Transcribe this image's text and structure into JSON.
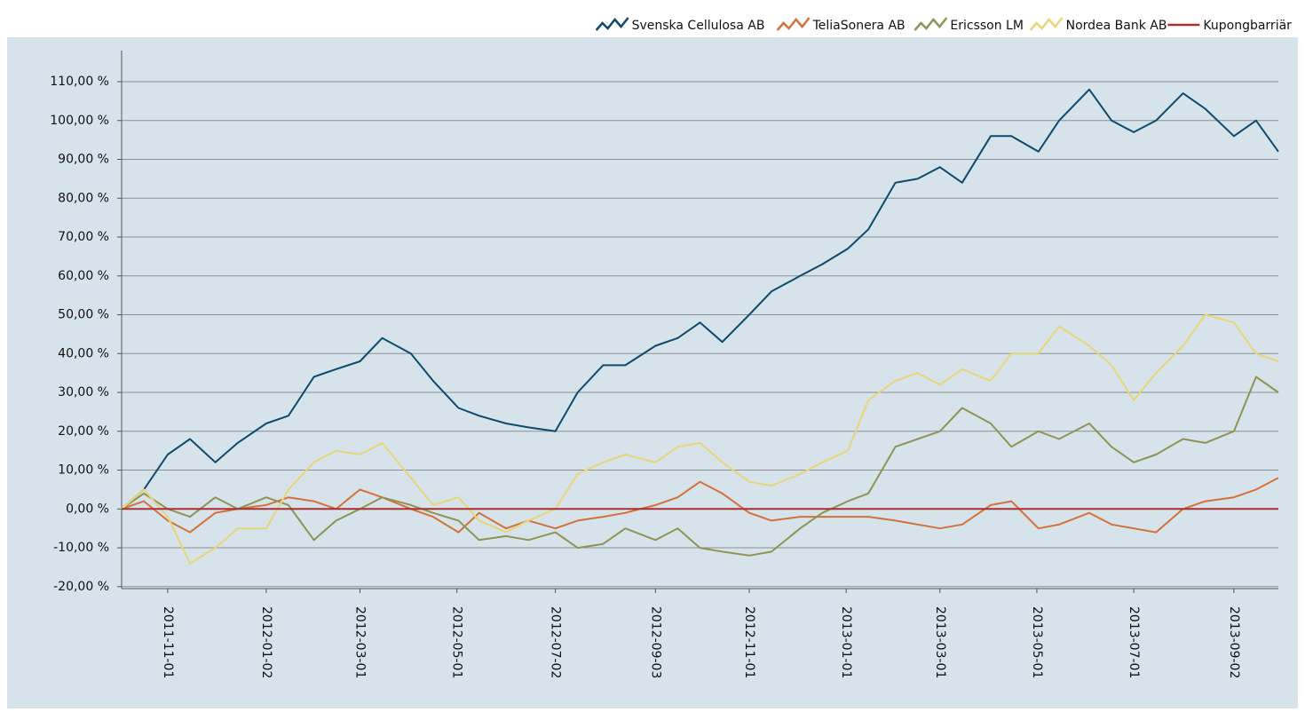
{
  "chart_data": {
    "type": "line",
    "x": [
      "2011-10-03",
      "2011-10-17",
      "2011-11-01",
      "2011-11-15",
      "2011-12-01",
      "2011-12-15",
      "2012-01-02",
      "2012-01-16",
      "2012-02-01",
      "2012-02-15",
      "2012-03-01",
      "2012-03-15",
      "2012-04-02",
      "2012-04-16",
      "2012-05-02",
      "2012-05-15",
      "2012-06-01",
      "2012-06-15",
      "2012-07-02",
      "2012-07-16",
      "2012-08-01",
      "2012-08-15",
      "2012-09-03",
      "2012-09-17",
      "2012-10-01",
      "2012-10-15",
      "2012-11-01",
      "2012-11-15",
      "2012-12-03",
      "2012-12-17",
      "2013-01-02",
      "2013-01-15",
      "2013-02-01",
      "2013-02-15",
      "2013-03-01",
      "2013-03-15",
      "2013-04-02",
      "2013-04-15",
      "2013-05-02",
      "2013-05-15",
      "2013-06-03",
      "2013-06-17",
      "2013-07-01",
      "2013-07-15",
      "2013-08-01",
      "2013-08-15",
      "2013-09-02",
      "2013-09-16",
      "2013-09-30"
    ],
    "series": [
      {
        "name": "Svenska Cellulosa AB",
        "color": "#0d4a6e",
        "values": [
          0,
          5,
          14,
          18,
          12,
          17,
          22,
          24,
          34,
          36,
          38,
          44,
          40,
          33,
          26,
          24,
          22,
          21,
          20,
          30,
          37,
          37,
          42,
          44,
          48,
          43,
          50,
          56,
          60,
          63,
          67,
          72,
          84,
          85,
          88,
          84,
          96,
          96,
          92,
          100,
          108,
          100,
          97,
          100,
          107,
          103,
          96,
          100,
          92
        ]
      },
      {
        "name": "TeliaSonera AB",
        "color": "#d4713a",
        "values": [
          0,
          2,
          -3,
          -6,
          -1,
          0,
          1,
          3,
          2,
          0,
          5,
          3,
          0,
          -2,
          -6,
          -1,
          -5,
          -3,
          -5,
          -3,
          -2,
          -1,
          1,
          3,
          7,
          4,
          -1,
          -3,
          -2,
          -2,
          -2,
          -2,
          -3,
          -4,
          -5,
          -4,
          1,
          2,
          -5,
          -4,
          -1,
          -4,
          -5,
          -6,
          0,
          2,
          3,
          5,
          8
        ]
      },
      {
        "name": "Ericsson LM",
        "color": "#8e9456",
        "values": [
          0,
          4,
          0,
          -2,
          3,
          0,
          3,
          1,
          -8,
          -3,
          0,
          3,
          1,
          -1,
          -3,
          -8,
          -7,
          -8,
          -6,
          -10,
          -9,
          -5,
          -8,
          -5,
          -10,
          -11,
          -12,
          -11,
          -5,
          -1,
          2,
          4,
          16,
          18,
          20,
          26,
          22,
          16,
          20,
          18,
          22,
          16,
          12,
          14,
          18,
          17,
          20,
          34,
          30
        ]
      },
      {
        "name": "Nordea Bank AB",
        "color": "#e8d57a",
        "values": [
          0,
          5,
          -2,
          -14,
          -10,
          -5,
          -5,
          5,
          12,
          15,
          14,
          17,
          8,
          1,
          3,
          -3,
          -6,
          -3,
          0,
          9,
          12,
          14,
          12,
          16,
          17,
          12,
          7,
          6,
          9,
          12,
          15,
          28,
          33,
          35,
          32,
          36,
          33,
          40,
          40,
          47,
          42,
          37,
          28,
          35,
          42,
          50,
          48,
          40,
          38
        ]
      },
      {
        "name": "Kupongbarriär",
        "color": "#a8312f",
        "values": [
          0,
          0,
          0,
          0,
          0,
          0,
          0,
          0,
          0,
          0,
          0,
          0,
          0,
          0,
          0,
          0,
          0,
          0,
          0,
          0,
          0,
          0,
          0,
          0,
          0,
          0,
          0,
          0,
          0,
          0,
          0,
          0,
          0,
          0,
          0,
          0,
          0,
          0,
          0,
          0,
          0,
          0,
          0,
          0,
          0,
          0,
          0,
          0,
          0
        ]
      }
    ],
    "xlim": [
      "2011-10-03",
      "2013-09-30"
    ],
    "xticks": [
      "2011-11-01",
      "2012-01-02",
      "2012-03-01",
      "2012-05-01",
      "2012-07-02",
      "2012-09-03",
      "2012-11-01",
      "2013-01-01",
      "2013-03-01",
      "2013-05-01",
      "2013-07-01",
      "2013-09-02"
    ],
    "ylim": [
      -20.5,
      118
    ],
    "yticks": [
      {
        "value": -20,
        "label": "-20,00 %"
      },
      {
        "value": -10,
        "label": "-10,00 %"
      },
      {
        "value": 0,
        "label": "0,00 %"
      },
      {
        "value": 10,
        "label": "10,00 %"
      },
      {
        "value": 20,
        "label": "20,00 %"
      },
      {
        "value": 30,
        "label": "30,00 %"
      },
      {
        "value": 40,
        "label": "40,00 %"
      },
      {
        "value": 50,
        "label": "50,00 %"
      },
      {
        "value": 60,
        "label": "60,00 %"
      },
      {
        "value": 70,
        "label": "70,00 %"
      },
      {
        "value": 80,
        "label": "80,00 %"
      },
      {
        "value": 90,
        "label": "90,00 %"
      },
      {
        "value": 100,
        "label": "100,00 %"
      },
      {
        "value": 110,
        "label": "110,00 %"
      }
    ],
    "grid": true,
    "legend": "top-right"
  }
}
